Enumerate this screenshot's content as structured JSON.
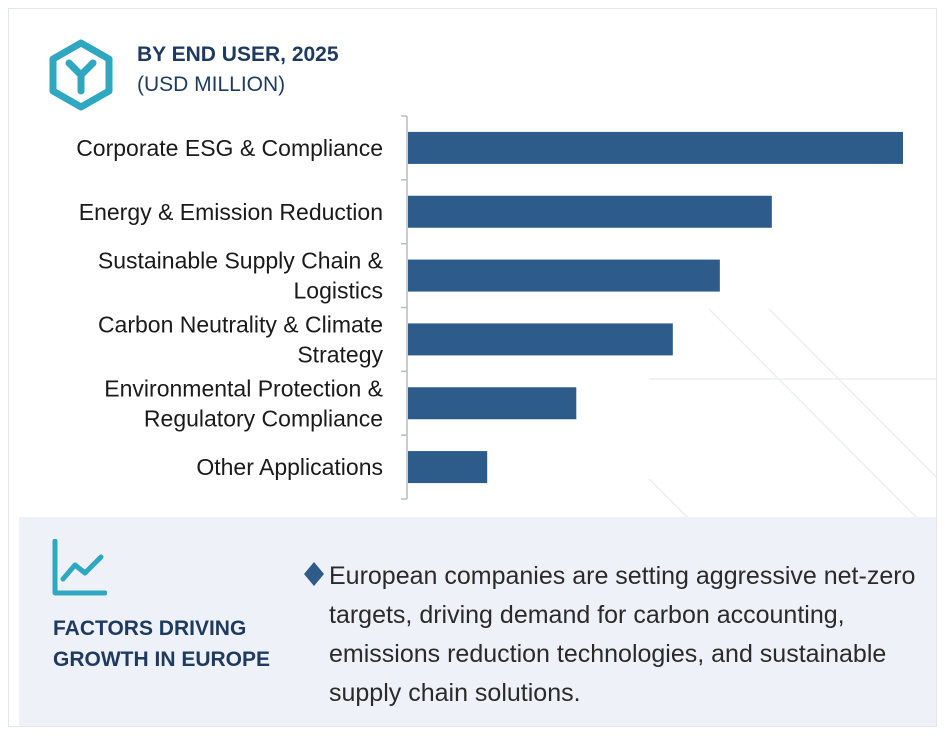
{
  "header": {
    "title": "BY END USER, 2025",
    "subtitle": "(USD MILLION)",
    "logo_icon": "hexagon-y-logo-icon"
  },
  "colors": {
    "bar": "#2d5b8a",
    "accent": "#2ea7c0",
    "heading": "#1e3a5f",
    "panel_bg": "#eef1f7"
  },
  "chart_data": {
    "type": "bar",
    "orientation": "horizontal",
    "categories": [
      [
        "Corporate ESG & Compliance"
      ],
      [
        "Energy & Emission Reduction"
      ],
      [
        "Sustainable Supply Chain &",
        "Logistics"
      ],
      [
        "Carbon Neutrality & Climate",
        "Strategy"
      ],
      [
        "Environmental Protection &",
        "Regulatory Compliance"
      ],
      [
        "Other Applications"
      ]
    ],
    "values": [
      100,
      73.5,
      63,
      53.5,
      34,
      16
    ],
    "xlim": [
      0,
      100
    ],
    "grid": false,
    "legend": "none",
    "xlabel": "",
    "ylabel": ""
  },
  "factors": {
    "icon": "trend-line-icon",
    "title": "FACTORS DRIVING GROWTH IN EUROPE",
    "bullet_icon": "diamond-bullet-icon",
    "text": "European companies are setting aggressive net-zero targets, driving demand for carbon accounting, emissions reduction technologies, and sustainable supply chain solutions."
  }
}
